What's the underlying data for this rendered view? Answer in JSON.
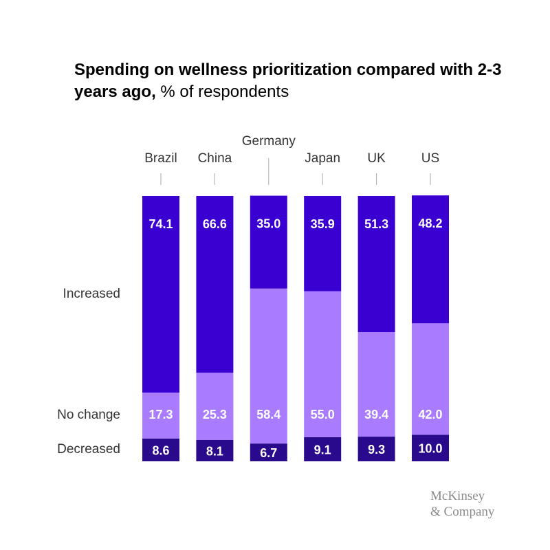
{
  "title": {
    "bold": "Spending on wellness prioritization compared with 2-3 years ago,",
    "normal": " % of respondents"
  },
  "chart_data": {
    "type": "bar",
    "stacked": true,
    "normalized": true,
    "categories": [
      "Brazil",
      "China",
      "Germany",
      "Japan",
      "UK",
      "US"
    ],
    "series": [
      {
        "name": "Decreased",
        "values": [
          8.6,
          8.1,
          6.7,
          9.1,
          9.3,
          10.0
        ],
        "color": "#2a0a8c"
      },
      {
        "name": "No change",
        "values": [
          17.3,
          25.3,
          58.4,
          55.0,
          39.4,
          42.0
        ],
        "color": "#a97cff"
      },
      {
        "name": "Increased",
        "values": [
          74.1,
          66.6,
          35.0,
          35.9,
          51.3,
          48.2
        ],
        "color": "#3a00d2"
      }
    ],
    "value_label_color": "#ffffff",
    "ylim": [
      0,
      100
    ]
  },
  "logo": {
    "line1": "McKinsey",
    "line2": "& Company"
  }
}
